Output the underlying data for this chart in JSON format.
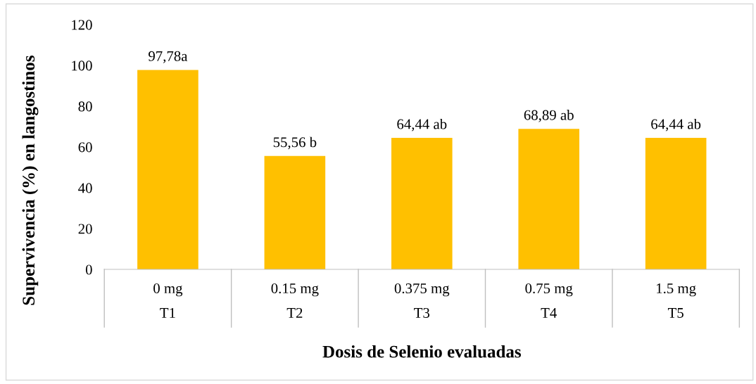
{
  "chart_data": {
    "type": "bar",
    "xlabel": "Dosis de Selenio evaluadas",
    "ylabel": "Supervivencia (%) en langostinos",
    "categories": [
      "0 mg\nT1",
      "0.15 mg\nT2",
      "0.375 mg\nT3",
      "0.75 mg\nT4",
      "1.5 mg\nT5"
    ],
    "values": [
      97.78,
      55.56,
      64.44,
      68.89,
      64.44
    ],
    "value_labels": [
      "97,78a",
      "55,56 b",
      "64,44 ab",
      "68,89 ab",
      "64,44 ab"
    ],
    "color": "#ffc000",
    "ylim": [
      0,
      120
    ],
    "yticks": [
      0,
      20,
      40,
      60,
      80,
      100,
      120
    ],
    "grid": false,
    "legend": false
  }
}
